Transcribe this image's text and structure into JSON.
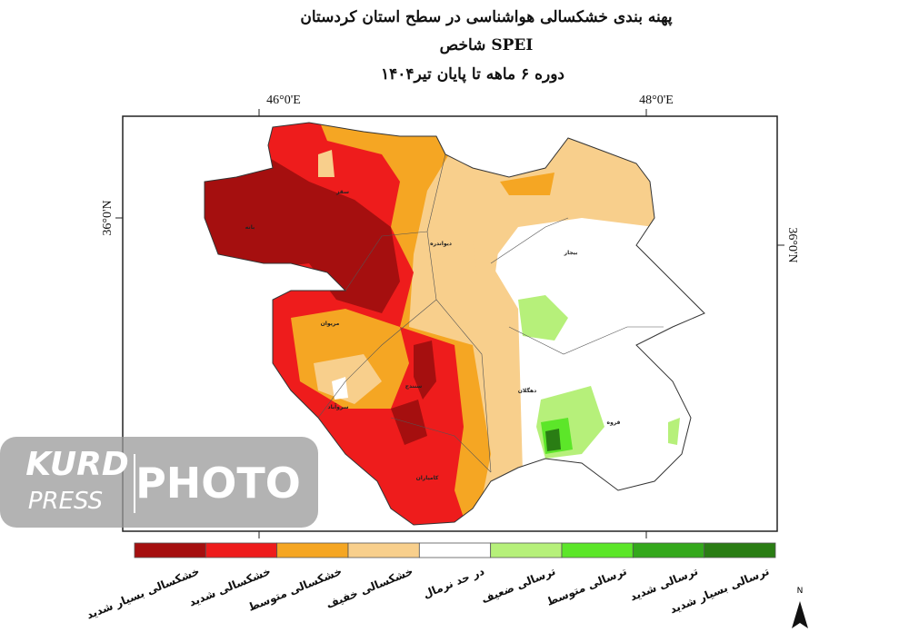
{
  "header": {
    "title": "پهنه بندی خشکسالی هواشناسی در سطح استان کردستان",
    "subtitle": "شاخص SPEI",
    "period": "دوره ۶ ماهه تا پایان تیر۱۴۰۴"
  },
  "map": {
    "top_labels": [
      "46°0'E",
      "48°0'E"
    ],
    "left_label": "36°0'N",
    "right_label": "36°0'N",
    "cities": [
      "سقز",
      "بانه",
      "دیواندره",
      "بیجار",
      "مریوان",
      "سنندج",
      "سروآباد",
      "دهگلان",
      "قروه",
      "کامیاران"
    ]
  },
  "legend": {
    "items": [
      {
        "label": "خشکسالی بسیار شدید",
        "color": "#a50f0f"
      },
      {
        "label": "خشکسالی شدید",
        "color": "#ee1c1c"
      },
      {
        "label": "خشکسالی متوسط",
        "color": "#f5a623"
      },
      {
        "label": "خشکسالی خفیف",
        "color": "#f8cf8c"
      },
      {
        "label": "در حد نرمال",
        "color": "#ffffff"
      },
      {
        "label": "ترسالی ضعیف",
        "color": "#b6f07a"
      },
      {
        "label": "ترسالی متوسط",
        "color": "#5ce629"
      },
      {
        "label": "ترسالی شدید",
        "color": "#34a81c"
      },
      {
        "label": "ترسالی بسیار شدید",
        "color": "#2a7d14"
      }
    ]
  },
  "north": "N",
  "watermark": {
    "brand_top": "KURD",
    "brand_bottom": "PRESS",
    "word": "PHOTO"
  }
}
